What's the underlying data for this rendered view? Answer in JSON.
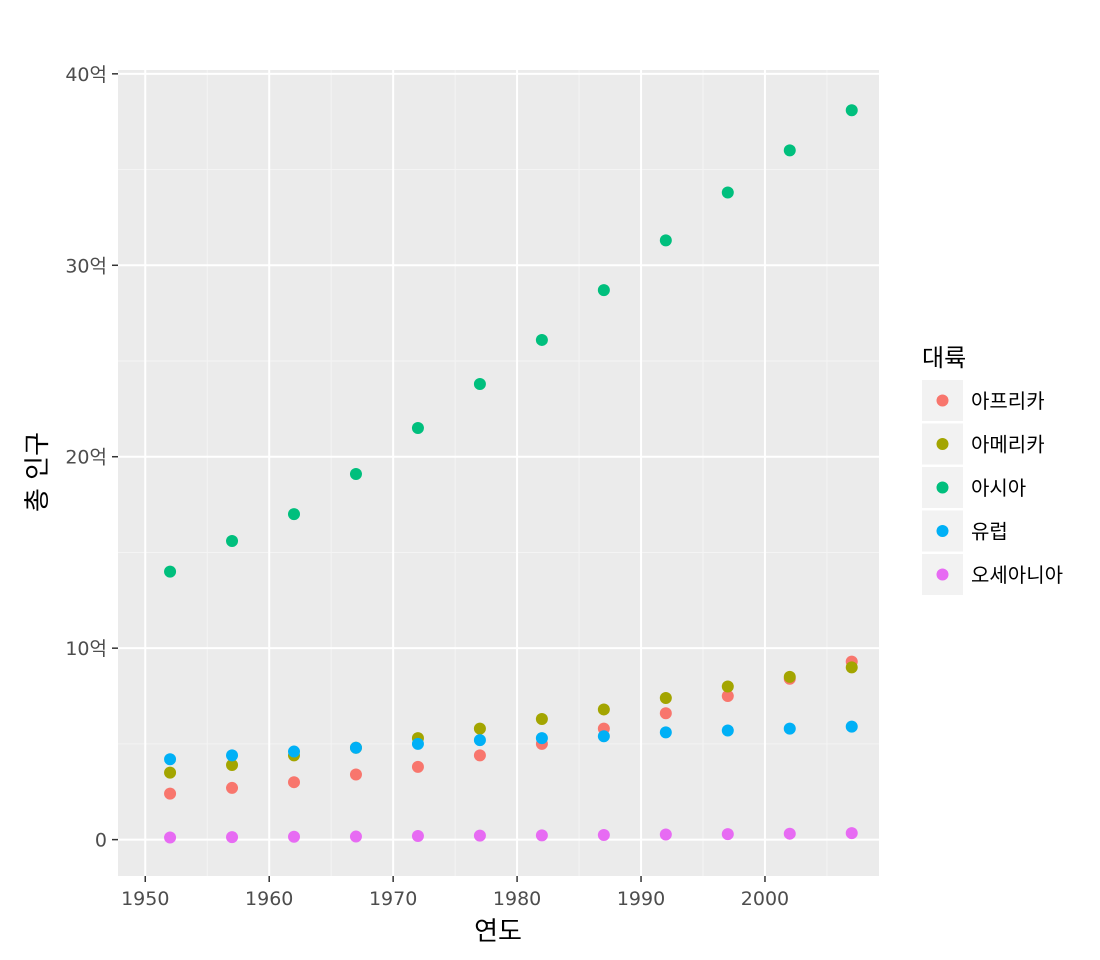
{
  "chart_data": {
    "type": "scatter",
    "xlabel": "연도",
    "ylabel": "총 인구",
    "xlim": [
      1947.8,
      2009.2
    ],
    "ylim": [
      -0.19,
      4.02
    ],
    "x_ticks": [
      1950,
      1960,
      1970,
      1980,
      1990,
      2000
    ],
    "x_tick_labels": [
      "1950",
      "1960",
      "1970",
      "1980",
      "1990",
      "2000"
    ],
    "y_ticks": [
      0,
      1,
      2,
      3,
      4
    ],
    "y_tick_labels": [
      "0",
      "10억",
      "20억",
      "30억",
      "40억"
    ],
    "y_unit_note": "values in billions (억 = 100 million)",
    "grid": true,
    "legend": {
      "title": "대륙",
      "placement": "right"
    },
    "x": [
      1952,
      1957,
      1962,
      1967,
      1972,
      1977,
      1982,
      1987,
      1992,
      1997,
      2002,
      2007
    ],
    "series": [
      {
        "name": "아프리카",
        "color": "#F8766D",
        "values": [
          0.24,
          0.27,
          0.3,
          0.34,
          0.38,
          0.44,
          0.5,
          0.58,
          0.66,
          0.75,
          0.84,
          0.93
        ]
      },
      {
        "name": "아메리카",
        "color": "#A3A500",
        "values": [
          0.35,
          0.39,
          0.44,
          0.48,
          0.53,
          0.58,
          0.63,
          0.68,
          0.74,
          0.8,
          0.85,
          0.9
        ]
      },
      {
        "name": "아시아",
        "color": "#00BF7D",
        "values": [
          1.4,
          1.56,
          1.7,
          1.91,
          2.15,
          2.38,
          2.61,
          2.87,
          3.13,
          3.38,
          3.6,
          3.81
        ]
      },
      {
        "name": "유럽",
        "color": "#00B0F6",
        "values": [
          0.42,
          0.44,
          0.46,
          0.48,
          0.5,
          0.52,
          0.53,
          0.54,
          0.56,
          0.57,
          0.58,
          0.59
        ]
      },
      {
        "name": "오세아니아",
        "color": "#E76BF3",
        "values": [
          0.011,
          0.013,
          0.015,
          0.016,
          0.019,
          0.021,
          0.022,
          0.024,
          0.027,
          0.029,
          0.031,
          0.034
        ]
      }
    ]
  }
}
